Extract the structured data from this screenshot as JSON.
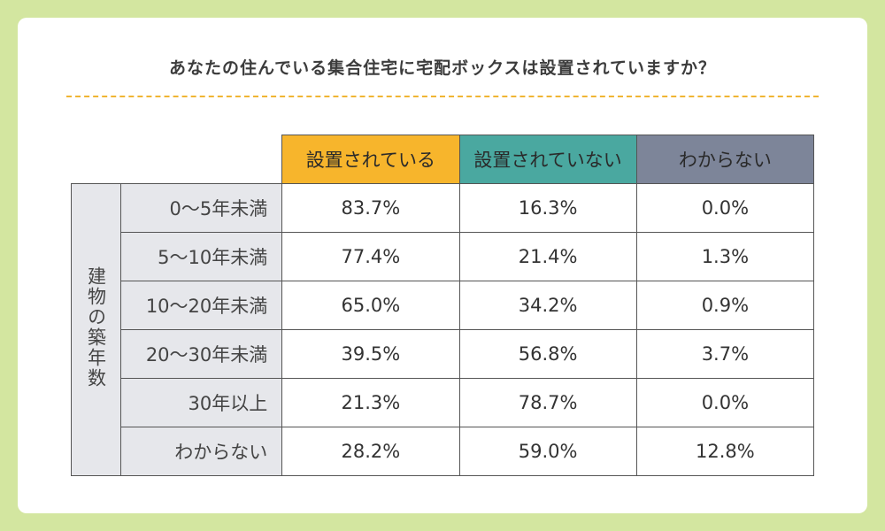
{
  "chart_data": {
    "type": "table",
    "title": "あなたの住んでいる集合住宅に宅配ボックスは設置されていますか？",
    "group_label": "建物の築年数",
    "columns": [
      {
        "label": "設置されている",
        "color": "#f7b52c"
      },
      {
        "label": "設置されていない",
        "color": "#4aa8a0"
      },
      {
        "label": "わからない",
        "color": "#7d8599"
      }
    ],
    "rows": [
      {
        "label": "0〜5年未満",
        "values": [
          "83.7%",
          "16.3%",
          "0.0%"
        ]
      },
      {
        "label": "5〜10年未満",
        "values": [
          "77.4%",
          "21.4%",
          "1.3%"
        ]
      },
      {
        "label": "10〜20年未満",
        "values": [
          "65.0%",
          "34.2%",
          "0.9%"
        ]
      },
      {
        "label": "20〜30年未満",
        "values": [
          "39.5%",
          "56.8%",
          "3.7%"
        ]
      },
      {
        "label": "30年以上",
        "values": [
          "21.3%",
          "78.7%",
          "0.0%"
        ]
      },
      {
        "label": "わからない",
        "values": [
          "28.2%",
          "59.0%",
          "12.8%"
        ]
      }
    ]
  },
  "colors": {
    "background": "#d3e6a0",
    "card": "#ffffff",
    "title_rule": "#f0b533",
    "row_header_bg": "#e6e7eb"
  }
}
